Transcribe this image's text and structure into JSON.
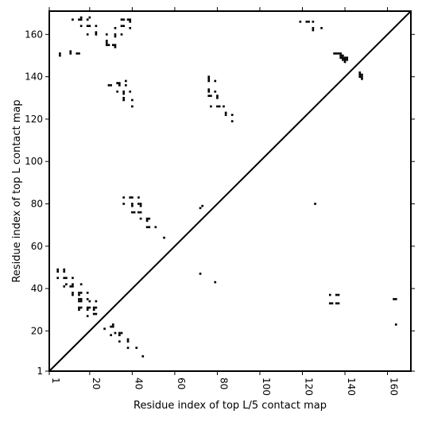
{
  "chart_data": {
    "type": "scatter",
    "title": "",
    "xlabel": "Residue index of top L/5 contact map",
    "ylabel": "Residue index of top L contact map",
    "xlim": [
      1,
      171
    ],
    "ylim": [
      1,
      171
    ],
    "xticks": [
      1,
      20,
      40,
      60,
      80,
      100,
      120,
      140,
      160
    ],
    "yticks": [
      1,
      20,
      40,
      60,
      80,
      100,
      120,
      140,
      160
    ],
    "grid": false,
    "marker": "square",
    "color": "#000000",
    "diagonal": {
      "from": [
        1,
        1
      ],
      "to": [
        171,
        171
      ]
    },
    "series": [
      {
        "name": "",
        "points": [
          [
            6,
            151
          ],
          [
            6,
            150
          ],
          [
            11,
            152
          ],
          [
            11,
            151
          ],
          [
            14,
            151
          ],
          [
            15,
            151
          ],
          [
            12,
            167
          ],
          [
            15,
            167
          ],
          [
            16,
            167
          ],
          [
            16,
            168
          ],
          [
            19,
            167
          ],
          [
            20,
            168
          ],
          [
            16,
            164
          ],
          [
            19,
            164
          ],
          [
            20,
            164
          ],
          [
            23,
            164
          ],
          [
            19,
            160
          ],
          [
            23,
            161
          ],
          [
            23,
            160
          ],
          [
            28,
            160
          ],
          [
            28,
            157
          ],
          [
            28,
            156
          ],
          [
            28,
            155
          ],
          [
            29,
            155
          ],
          [
            31,
            155
          ],
          [
            32,
            155
          ],
          [
            32,
            154
          ],
          [
            32,
            163
          ],
          [
            32,
            160
          ],
          [
            32,
            159
          ],
          [
            35,
            160
          ],
          [
            35,
            164
          ],
          [
            36,
            164
          ],
          [
            35,
            167
          ],
          [
            36,
            167
          ],
          [
            38,
            167
          ],
          [
            39,
            167
          ],
          [
            39,
            166
          ],
          [
            39,
            163
          ],
          [
            29,
            136
          ],
          [
            30,
            136
          ],
          [
            33,
            137
          ],
          [
            34,
            137
          ],
          [
            34,
            136
          ],
          [
            33,
            133
          ],
          [
            36,
            133
          ],
          [
            36,
            132
          ],
          [
            37,
            138
          ],
          [
            37,
            136
          ],
          [
            36,
            130
          ],
          [
            36,
            129
          ],
          [
            39,
            133
          ],
          [
            40,
            129
          ],
          [
            40,
            126
          ],
          [
            36,
            83
          ],
          [
            39,
            83
          ],
          [
            40,
            83
          ],
          [
            43,
            83
          ],
          [
            36,
            80
          ],
          [
            40,
            80
          ],
          [
            40,
            79
          ],
          [
            43,
            80
          ],
          [
            44,
            80
          ],
          [
            44,
            79
          ],
          [
            40,
            76
          ],
          [
            41,
            76
          ],
          [
            43,
            76
          ],
          [
            44,
            76
          ],
          [
            44,
            73
          ],
          [
            47,
            73
          ],
          [
            48,
            73
          ],
          [
            47,
            72
          ],
          [
            47,
            69
          ],
          [
            48,
            69
          ],
          [
            51,
            69
          ],
          [
            55,
            64
          ],
          [
            5,
            49
          ],
          [
            5,
            48
          ],
          [
            8,
            49
          ],
          [
            8,
            48
          ],
          [
            5,
            45
          ],
          [
            8,
            45
          ],
          [
            9,
            45
          ],
          [
            12,
            45
          ],
          [
            8,
            41
          ],
          [
            9,
            42
          ],
          [
            11,
            41
          ],
          [
            12,
            42
          ],
          [
            12,
            41
          ],
          [
            12,
            38
          ],
          [
            12,
            37
          ],
          [
            15,
            38
          ],
          [
            16,
            38
          ],
          [
            15,
            37
          ],
          [
            15,
            35
          ],
          [
            16,
            35
          ],
          [
            16,
            34
          ],
          [
            15,
            34
          ],
          [
            19,
            35
          ],
          [
            19,
            38
          ],
          [
            16,
            42
          ],
          [
            20,
            34
          ],
          [
            23,
            34
          ],
          [
            15,
            31
          ],
          [
            16,
            31
          ],
          [
            15,
            30
          ],
          [
            19,
            31
          ],
          [
            20,
            31
          ],
          [
            19,
            30
          ],
          [
            22,
            31
          ],
          [
            23,
            31
          ],
          [
            22,
            30
          ],
          [
            19,
            27
          ],
          [
            22,
            28
          ],
          [
            23,
            28
          ],
          [
            27,
            21
          ],
          [
            30,
            22
          ],
          [
            31,
            23
          ],
          [
            31,
            22
          ],
          [
            30,
            18
          ],
          [
            32,
            19
          ],
          [
            34,
            19
          ],
          [
            35,
            19
          ],
          [
            34,
            18
          ],
          [
            34,
            15
          ],
          [
            38,
            16
          ],
          [
            38,
            15
          ],
          [
            38,
            12
          ],
          [
            42,
            12
          ],
          [
            45,
            8
          ],
          [
            72,
            78
          ],
          [
            73,
            79
          ],
          [
            72,
            47
          ],
          [
            79,
            43
          ],
          [
            76,
            140
          ],
          [
            76,
            139
          ],
          [
            76,
            138
          ],
          [
            79,
            138
          ],
          [
            76,
            134
          ],
          [
            76,
            133
          ],
          [
            76,
            131
          ],
          [
            77,
            131
          ],
          [
            79,
            133
          ],
          [
            77,
            126
          ],
          [
            80,
            131
          ],
          [
            80,
            130
          ],
          [
            80,
            126
          ],
          [
            81,
            126
          ],
          [
            83,
            126
          ],
          [
            84,
            123
          ],
          [
            84,
            122
          ],
          [
            87,
            122
          ],
          [
            87,
            119
          ],
          [
            119,
            166
          ],
          [
            122,
            166
          ],
          [
            123,
            166
          ],
          [
            125,
            166
          ],
          [
            125,
            163
          ],
          [
            125,
            162
          ],
          [
            129,
            163
          ],
          [
            126,
            80
          ],
          [
            135,
            151
          ],
          [
            136,
            151
          ],
          [
            137,
            151
          ],
          [
            138,
            151
          ],
          [
            138,
            150
          ],
          [
            139,
            150
          ],
          [
            138,
            149
          ],
          [
            139,
            149
          ],
          [
            140,
            149
          ],
          [
            141,
            149
          ],
          [
            139,
            148
          ],
          [
            140,
            148
          ],
          [
            141,
            148
          ],
          [
            140,
            147
          ],
          [
            147,
            142
          ],
          [
            147,
            141
          ],
          [
            148,
            141
          ],
          [
            147,
            140
          ],
          [
            148,
            140
          ],
          [
            148,
            139
          ],
          [
            133,
            37
          ],
          [
            136,
            37
          ],
          [
            137,
            37
          ],
          [
            133,
            33
          ],
          [
            134,
            33
          ],
          [
            136,
            33
          ],
          [
            137,
            33
          ],
          [
            163,
            35
          ],
          [
            164,
            35
          ],
          [
            164,
            23
          ]
        ]
      }
    ]
  }
}
